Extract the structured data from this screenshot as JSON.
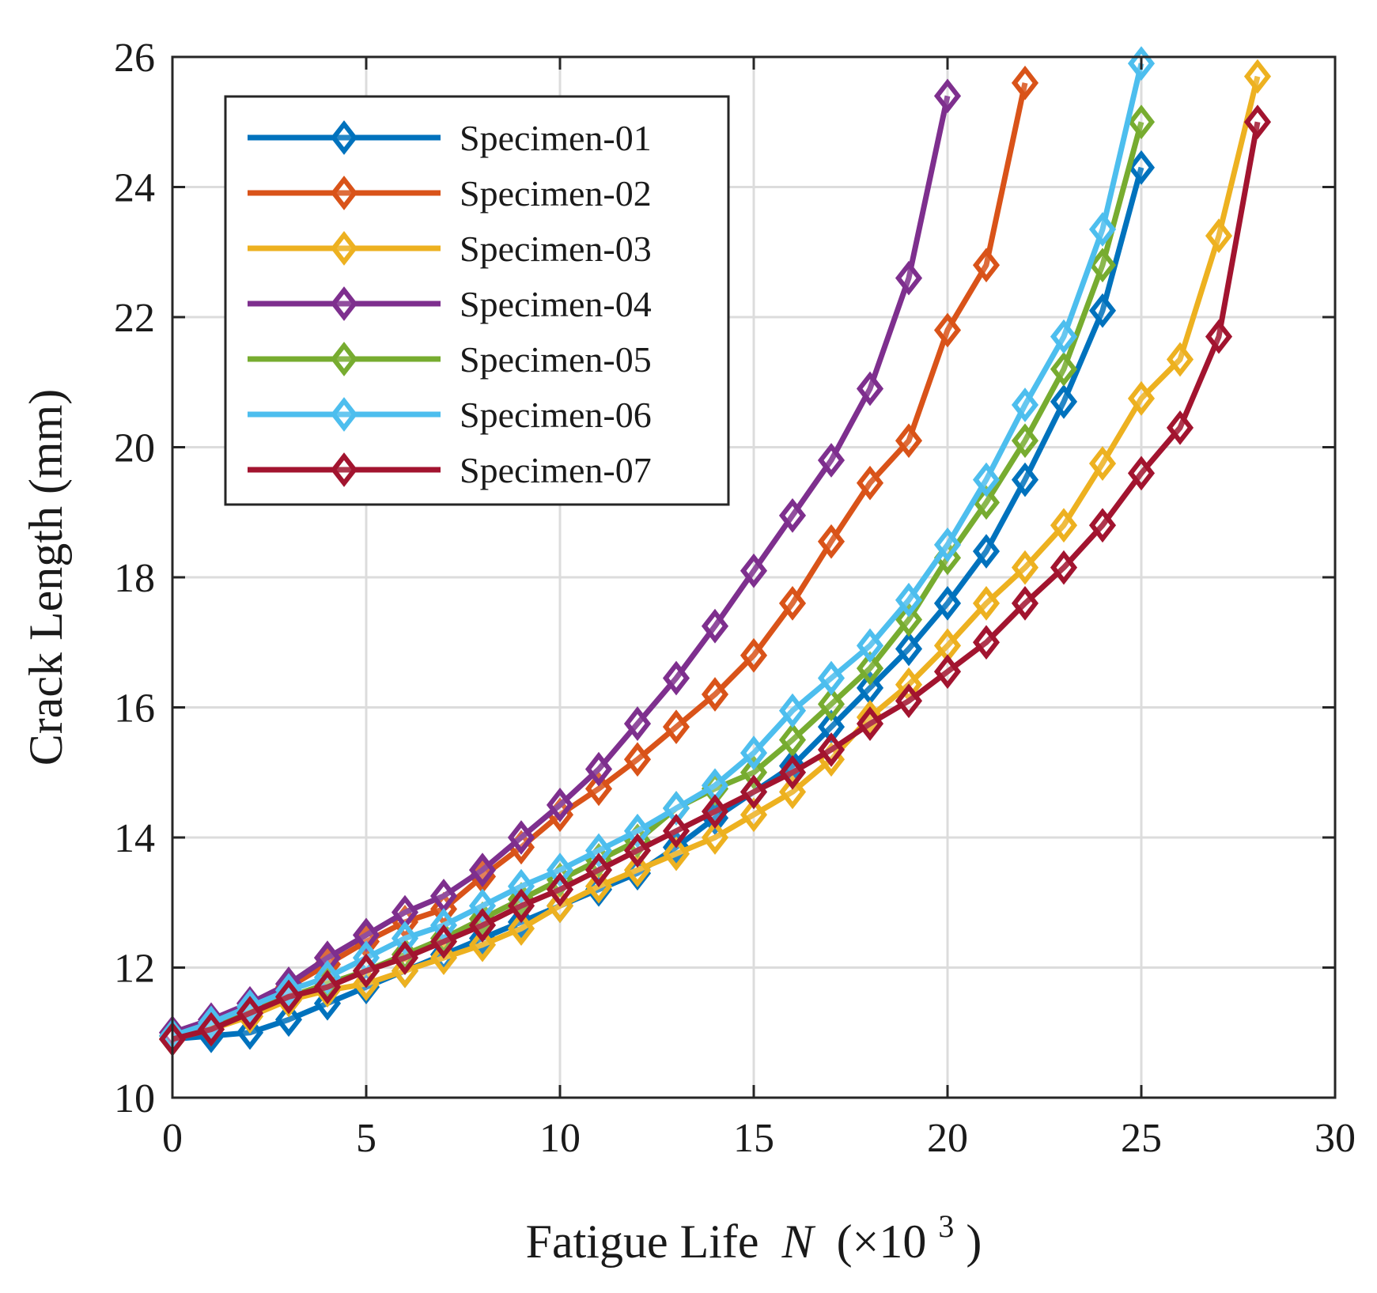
{
  "chart_data": {
    "type": "line",
    "title": "",
    "xlabel": "Fatigue Life",
    "xlabel_var": "N",
    "xlabel_unit_prefix": "(×10",
    "xlabel_unit_exp": "3",
    "xlabel_unit_suffix": ")",
    "ylabel": "Crack Length (mm)",
    "xlim": [
      0,
      30
    ],
    "ylim": [
      10,
      26
    ],
    "xticks": [
      0,
      5,
      10,
      15,
      20,
      25,
      30
    ],
    "yticks": [
      10,
      12,
      14,
      16,
      18,
      20,
      22,
      24,
      26
    ],
    "xtick_labels": [
      "0",
      "5",
      "10",
      "15",
      "20",
      "25",
      "30"
    ],
    "ytick_labels": [
      "10",
      "12",
      "14",
      "16",
      "18",
      "20",
      "22",
      "24",
      "26"
    ],
    "grid": true,
    "legend_position": "top-left",
    "marker": "diamond",
    "series": [
      {
        "name": "Specimen-01",
        "color": "#0072BD",
        "x": [
          0,
          1,
          2,
          3,
          4,
          5,
          6,
          7,
          8,
          9,
          10,
          11,
          12,
          13,
          14,
          15,
          16,
          17,
          18,
          19,
          20,
          21,
          22,
          23,
          24,
          25
        ],
        "y": [
          10.9,
          10.95,
          11.0,
          11.2,
          11.45,
          11.7,
          11.95,
          12.2,
          12.45,
          12.7,
          12.95,
          13.2,
          13.45,
          13.85,
          14.3,
          14.7,
          15.1,
          15.7,
          16.3,
          16.9,
          17.6,
          18.4,
          19.5,
          20.7,
          22.1,
          24.3
        ]
      },
      {
        "name": "Specimen-02",
        "color": "#D95319",
        "x": [
          0,
          1,
          2,
          3,
          4,
          5,
          6,
          7,
          8,
          9,
          10,
          11,
          12,
          13,
          14,
          15,
          16,
          17,
          18,
          19,
          20,
          21,
          22
        ],
        "y": [
          10.95,
          11.1,
          11.4,
          11.7,
          12.05,
          12.4,
          12.7,
          12.9,
          13.4,
          13.85,
          14.35,
          14.75,
          15.2,
          15.7,
          16.2,
          16.8,
          17.6,
          18.55,
          19.45,
          20.1,
          21.8,
          22.8,
          25.6
        ]
      },
      {
        "name": "Specimen-03",
        "color": "#EDB120",
        "x": [
          0,
          1,
          2,
          3,
          4,
          5,
          6,
          7,
          8,
          9,
          10,
          11,
          12,
          13,
          14,
          15,
          16,
          17,
          18,
          19,
          20,
          21,
          22,
          23,
          24,
          25,
          26,
          27,
          28
        ],
        "y": [
          10.9,
          11.05,
          11.25,
          11.5,
          11.65,
          11.75,
          11.95,
          12.15,
          12.35,
          12.6,
          12.95,
          13.25,
          13.5,
          13.75,
          14.0,
          14.35,
          14.7,
          15.2,
          15.85,
          16.35,
          16.95,
          17.6,
          18.15,
          18.8,
          19.75,
          20.75,
          21.35,
          23.25,
          25.7
        ]
      },
      {
        "name": "Specimen-04",
        "color": "#7E2F8E",
        "x": [
          0,
          1,
          2,
          3,
          4,
          5,
          6,
          7,
          8,
          9,
          10,
          11,
          12,
          13,
          14,
          15,
          16,
          17,
          18,
          19,
          20
        ],
        "y": [
          11.0,
          11.2,
          11.45,
          11.75,
          12.15,
          12.5,
          12.85,
          13.1,
          13.5,
          14.0,
          14.5,
          15.05,
          15.75,
          16.45,
          17.25,
          18.1,
          18.95,
          19.8,
          20.9,
          22.6,
          25.4
        ]
      },
      {
        "name": "Specimen-05",
        "color": "#77AC30",
        "x": [
          0,
          1,
          2,
          3,
          4,
          5,
          6,
          7,
          8,
          9,
          10,
          11,
          12,
          13,
          14,
          15,
          16,
          17,
          18,
          19,
          20,
          21,
          22,
          23,
          24,
          25
        ],
        "y": [
          10.95,
          11.1,
          11.35,
          11.55,
          11.75,
          11.95,
          12.2,
          12.45,
          12.75,
          13.05,
          13.35,
          13.65,
          13.95,
          14.45,
          14.75,
          15.0,
          15.5,
          16.05,
          16.6,
          17.35,
          18.3,
          19.15,
          20.1,
          21.2,
          22.8,
          25.0
        ]
      },
      {
        "name": "Specimen-06",
        "color": "#4DBEEE",
        "x": [
          0,
          1,
          2,
          3,
          4,
          5,
          6,
          7,
          8,
          9,
          10,
          11,
          12,
          13,
          14,
          15,
          16,
          17,
          18,
          19,
          20,
          21,
          22,
          23,
          24,
          25
        ],
        "y": [
          10.95,
          11.15,
          11.4,
          11.65,
          11.85,
          12.15,
          12.45,
          12.65,
          12.95,
          13.25,
          13.5,
          13.8,
          14.1,
          14.45,
          14.8,
          15.3,
          15.95,
          16.45,
          16.95,
          17.65,
          18.5,
          19.5,
          20.65,
          21.7,
          23.35,
          25.9
        ]
      },
      {
        "name": "Specimen-07",
        "color": "#A2142F",
        "x": [
          0,
          1,
          2,
          3,
          4,
          5,
          6,
          7,
          8,
          9,
          10,
          11,
          12,
          13,
          14,
          15,
          16,
          17,
          18,
          19,
          20,
          21,
          22,
          23,
          24,
          25,
          26,
          27,
          28
        ],
        "y": [
          10.9,
          11.05,
          11.3,
          11.55,
          11.7,
          11.95,
          12.15,
          12.4,
          12.65,
          12.95,
          13.2,
          13.5,
          13.8,
          14.1,
          14.4,
          14.7,
          15.0,
          15.35,
          15.75,
          16.1,
          16.55,
          17.0,
          17.6,
          18.15,
          18.8,
          19.6,
          20.3,
          21.7,
          25.0
        ]
      }
    ]
  }
}
